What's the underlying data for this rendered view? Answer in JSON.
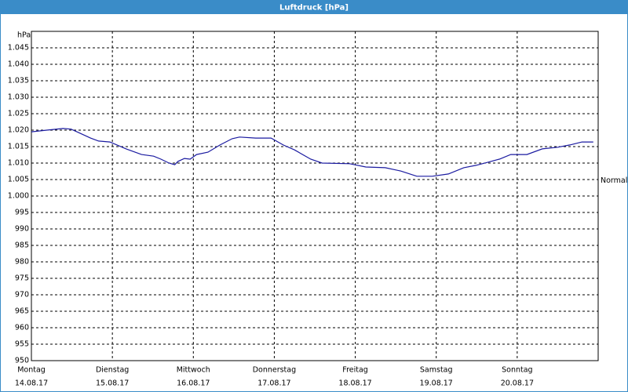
{
  "chart_data": {
    "type": "line",
    "title": "Luftdruck [hPa]",
    "y_label": "hPa",
    "x": [
      0,
      0.19,
      0.39,
      0.49,
      0.58,
      0.73,
      0.83,
      0.97,
      1.17,
      1.36,
      1.51,
      1.6,
      1.7,
      1.77,
      1.81,
      1.89,
      1.96,
      2.04,
      2.18,
      2.33,
      2.48,
      2.57,
      2.77,
      2.96,
      3.11,
      3.25,
      3.45,
      3.59,
      3.93,
      4.13,
      4.37,
      4.56,
      4.76,
      4.95,
      5.15,
      5.34,
      5.49,
      5.63,
      5.78,
      5.92,
      6.12,
      6.31,
      6.5,
      6.65,
      6.8,
      6.94
    ],
    "values": [
      1019.5,
      1020,
      1020.5,
      1020.3,
      1019.3,
      1017.6,
      1016.7,
      1016.4,
      1014.3,
      1012.6,
      1012.1,
      1011.2,
      1010,
      1009.5,
      1010.5,
      1011.4,
      1011.2,
      1012.6,
      1013.3,
      1015.5,
      1017.4,
      1017.9,
      1017.6,
      1017.6,
      1015.5,
      1014,
      1011.2,
      1010,
      1009.8,
      1008.8,
      1008.6,
      1007.6,
      1006,
      1006,
      1006.7,
      1008.6,
      1009.3,
      1010.2,
      1011.2,
      1012.6,
      1012.6,
      1014.3,
      1014.8,
      1015.5,
      1016.4,
      1016.4
    ],
    "color": "#1a1aa0",
    "xlim": [
      0,
      7
    ],
    "xticks": [
      {
        "value": 0,
        "label": "Montag"
      },
      {
        "value": 1,
        "label": "Dienstag"
      },
      {
        "value": 2,
        "label": "Mittwoch"
      },
      {
        "value": 3,
        "label": "Donnerstag"
      },
      {
        "value": 4,
        "label": "Freitag"
      },
      {
        "value": 5,
        "label": "Samstag"
      },
      {
        "value": 6,
        "label": "Sonntag"
      }
    ],
    "xtick_dates": [
      "14.08.17",
      "15.08.17",
      "16.08.17",
      "17.08.17",
      "18.08.17",
      "19.08.17",
      "20.08.17"
    ],
    "ylim": [
      950,
      1050
    ],
    "yticks": [
      950,
      955,
      960,
      965,
      970,
      975,
      980,
      985,
      990,
      995,
      {
        "value": 1000,
        "label": "1.000"
      },
      {
        "value": 1005,
        "label": "1.005"
      },
      {
        "value": 1010,
        "label": "1.010"
      },
      {
        "value": 1015,
        "label": "1.015"
      },
      {
        "value": 1020,
        "label": "1.020"
      },
      {
        "value": 1025,
        "label": "1.025"
      },
      {
        "value": 1030,
        "label": "1.030"
      },
      {
        "value": 1035,
        "label": "1.035"
      },
      {
        "value": 1040,
        "label": "1.040"
      },
      {
        "value": 1045,
        "label": "1.045"
      }
    ],
    "reference": {
      "label": "Normal",
      "value": 1004.6
    },
    "grid": true
  }
}
